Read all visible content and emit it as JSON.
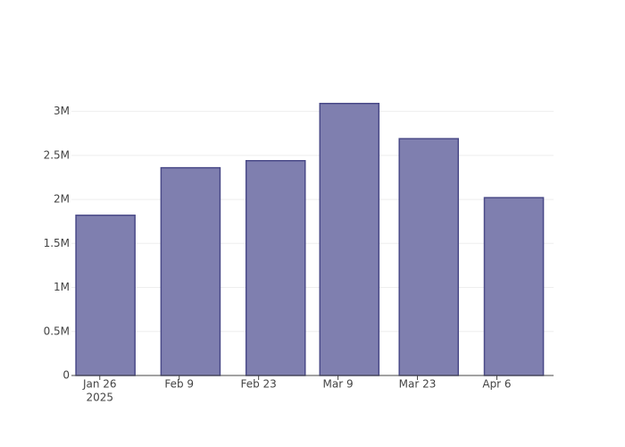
{
  "chart_data": {
    "type": "bar",
    "x": [
      "2025-01-27",
      "2025-02-11",
      "2025-02-26",
      "2025-03-11",
      "2025-03-25",
      "2025-04-09"
    ],
    "values": [
      1820000,
      2360000,
      2440000,
      3090000,
      2690000,
      2020000
    ],
    "color": "#7f7faf",
    "line_color": "#4a4a88",
    "xlim": [
      "2025-01-21",
      "2025-04-16"
    ],
    "xticks": [
      {
        "value": "2025-01-26",
        "label": "Jan 26"
      },
      {
        "value": "2025-02-09",
        "label": "Feb 9"
      },
      {
        "value": "2025-02-23",
        "label": "Feb 23"
      },
      {
        "value": "2025-03-09",
        "label": "Mar 9"
      },
      {
        "value": "2025-03-23",
        "label": "Mar 23"
      },
      {
        "value": "2025-04-06",
        "label": "Apr 6"
      }
    ],
    "xtick_year": "2025",
    "ylim": [
      0,
      3250000
    ],
    "yticks": [
      0,
      {
        "value": 500000,
        "label": "0.5M"
      },
      {
        "value": 1000000,
        "label": "1M"
      },
      {
        "value": 1500000,
        "label": "1.5M"
      },
      {
        "value": 2000000,
        "label": "2M"
      },
      {
        "value": 2500000,
        "label": "2.5M"
      },
      {
        "value": 3000000,
        "label": "3M"
      }
    ],
    "grid": true
  }
}
